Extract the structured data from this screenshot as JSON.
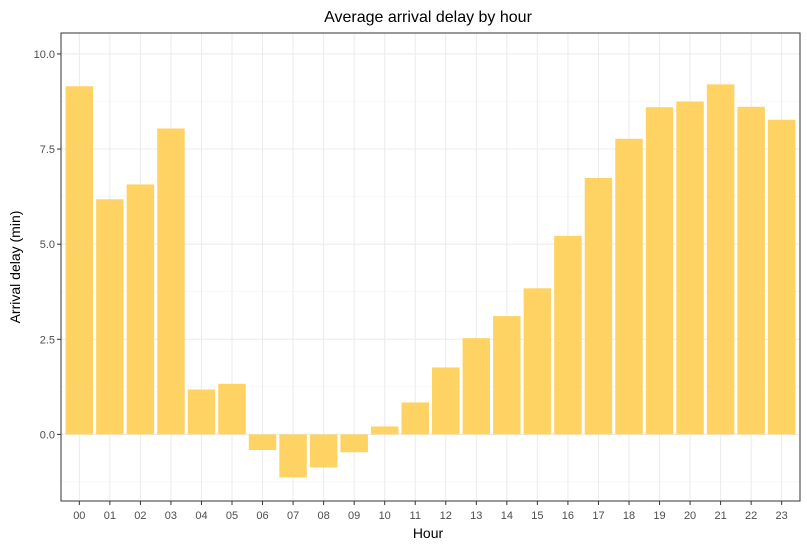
{
  "chart_data": {
    "type": "bar",
    "title": "Average arrival delay by hour",
    "xlabel": "Hour",
    "ylabel": "Arrival delay (min)",
    "categories": [
      "00",
      "01",
      "02",
      "03",
      "04",
      "05",
      "06",
      "07",
      "08",
      "09",
      "10",
      "11",
      "12",
      "13",
      "14",
      "15",
      "16",
      "17",
      "18",
      "19",
      "20",
      "21",
      "22",
      "23"
    ],
    "values": [
      9.15,
      6.18,
      6.57,
      8.04,
      1.18,
      1.33,
      -0.41,
      -1.13,
      -0.87,
      -0.47,
      0.21,
      0.84,
      1.76,
      2.53,
      3.11,
      3.84,
      5.22,
      6.74,
      7.77,
      8.6,
      8.75,
      9.2,
      8.61,
      8.27
    ],
    "ylim": [
      -1.75,
      10.55
    ],
    "yticks": [
      0.0,
      2.5,
      5.0,
      7.5,
      10.0
    ],
    "ytick_labels": [
      "0.0",
      "2.5",
      "5.0",
      "7.5",
      "10.0"
    ],
    "bar_color": "#fecf57",
    "grid": true,
    "legend": "none"
  }
}
